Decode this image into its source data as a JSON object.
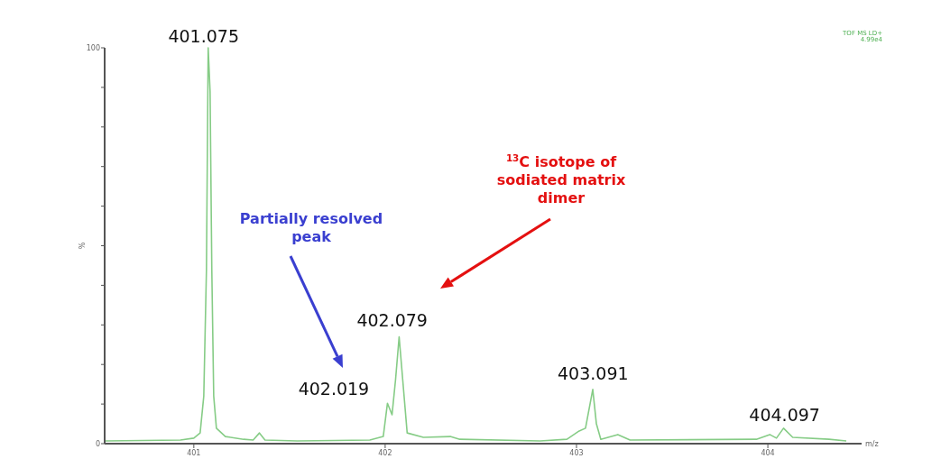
{
  "chart_data": {
    "type": "line",
    "xlabel": "m/z",
    "ylabel": "%",
    "xlim": [
      400.534,
      404.49
    ],
    "ylim": [
      0,
      100
    ],
    "xticks": [
      401,
      402,
      403,
      404
    ],
    "yticks": [
      0,
      {
        "value": 10,
        "label": null
      },
      {
        "value": 20,
        "label": null
      },
      {
        "value": 30,
        "label": null
      },
      {
        "value": 40,
        "label": null
      },
      {
        "value": 50,
        "label": null
      },
      {
        "value": 60,
        "label": null
      },
      {
        "value": 70,
        "label": null
      },
      {
        "value": 80,
        "label": null
      },
      {
        "value": 90,
        "label": null
      },
      100
    ],
    "grid": false,
    "marker": "none",
    "line_style": "solid",
    "series": [
      {
        "color": "#86cc86",
        "x": [
          400.534,
          400.93,
          401.0,
          401.033,
          401.052,
          401.066,
          401.075,
          401.085,
          401.094,
          401.104,
          401.118,
          401.165,
          401.26,
          401.31,
          401.343,
          401.372,
          401.54,
          401.92,
          401.99,
          402.012,
          402.036,
          402.054,
          402.073,
          402.092,
          402.115,
          402.2,
          402.34,
          402.39,
          402.81,
          402.95,
          403.014,
          403.047,
          403.085,
          403.104,
          403.127,
          403.216,
          403.28,
          403.94,
          404.01,
          404.045,
          404.082,
          404.13,
          404.32,
          404.41
        ],
        "values": [
          0.7,
          0.9,
          1.4,
          2.7,
          12,
          44,
          100,
          89,
          44,
          12,
          3.9,
          1.8,
          1.1,
          0.9,
          2.7,
          0.9,
          0.7,
          0.9,
          1.8,
          10.2,
          7.3,
          16,
          27,
          16,
          2.7,
          1.6,
          1.8,
          1.1,
          0.7,
          1.1,
          3.2,
          3.9,
          13.7,
          5,
          1.1,
          2.3,
          0.9,
          1.1,
          2.3,
          1.4,
          3.9,
          1.6,
          1.1,
          0.7
        ]
      }
    ],
    "annotations": [
      {
        "text": "401.075",
        "x": 401.075,
        "y": 100
      },
      {
        "text": "402.019",
        "x": 402.019,
        "y": 10.2
      },
      {
        "text": "402.079",
        "x": 402.079,
        "y": 27
      },
      {
        "text": "403.091",
        "x": 403.091,
        "y": 13.7
      },
      {
        "text": "404.097",
        "x": 404.097,
        "y": 3.9
      },
      "Partially resolved peak",
      "$^{13}$C isotope of sodiated matrix dimer",
      "TOF MS LD+",
      "4.99e4"
    ]
  }
}
